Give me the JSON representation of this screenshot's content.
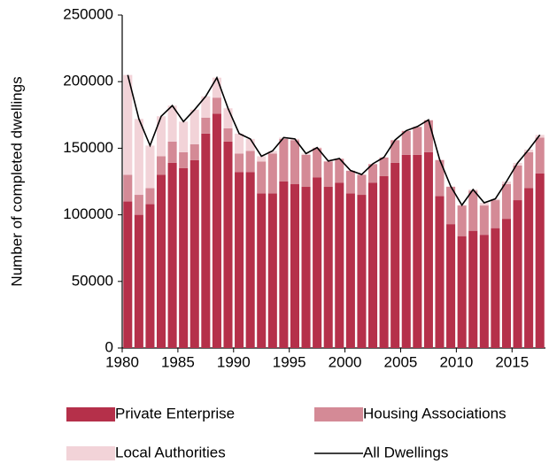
{
  "chart_data": {
    "type": "bar",
    "stacked": true,
    "y_label": "Number of completed dwellings",
    "x": [
      1980,
      1981,
      1982,
      1983,
      1984,
      1985,
      1986,
      1987,
      1988,
      1989,
      1990,
      1991,
      1992,
      1993,
      1994,
      1995,
      1996,
      1997,
      1998,
      1999,
      2000,
      2001,
      2002,
      2003,
      2004,
      2005,
      2006,
      2007,
      2008,
      2009,
      2010,
      2011,
      2012,
      2013,
      2014,
      2015,
      2016,
      2017
    ],
    "xlim": [
      1979.5,
      2017.5
    ],
    "xticks": [
      1980,
      1985,
      1990,
      1995,
      2000,
      2005,
      2010,
      2015
    ],
    "ylim": [
      0,
      250000
    ],
    "yticks": [
      0,
      50000,
      100000,
      150000,
      200000,
      250000
    ],
    "grid": false,
    "legend": "bottom",
    "series": [
      {
        "name": "Private Enterprise",
        "color": "#b5304a",
        "kind": "bar",
        "values": [
          110000,
          100000,
          108000,
          130000,
          139000,
          135000,
          141000,
          161000,
          176000,
          155000,
          132000,
          132000,
          116000,
          116000,
          125000,
          123000,
          121000,
          128000,
          121000,
          124000,
          116000,
          115000,
          124000,
          129000,
          139000,
          145000,
          145000,
          147000,
          114000,
          93000,
          84000,
          88000,
          85000,
          90000,
          97000,
          111000,
          120000,
          131000
        ]
      },
      {
        "name": "Housing Associations",
        "color": "#d48a96",
        "kind": "bar",
        "values": [
          20000,
          15000,
          12000,
          14000,
          16000,
          12000,
          12000,
          12000,
          12000,
          10000,
          14000,
          16000,
          24000,
          30000,
          32000,
          33000,
          24000,
          22000,
          19000,
          18000,
          17000,
          15000,
          14000,
          14000,
          17000,
          18000,
          21000,
          24000,
          27000,
          28000,
          23000,
          30000,
          22000,
          21000,
          26000,
          26000,
          27000,
          27000
        ]
      },
      {
        "name": "Local Authorities",
        "color": "#f2d3d8",
        "kind": "bar",
        "values": [
          75000,
          57000,
          32000,
          30000,
          27000,
          23000,
          26000,
          16000,
          15000,
          15000,
          15000,
          9000,
          4000,
          2000,
          1000,
          1000,
          1000,
          500,
          400,
          300,
          300,
          300,
          300,
          200,
          200,
          200,
          300,
          300,
          500,
          300,
          300,
          1000,
          2000,
          1000,
          2000,
          2000,
          2000,
          2000
        ]
      },
      {
        "name": "All Dwellings",
        "color": "#000000",
        "kind": "line",
        "values": [
          205000,
          172000,
          152000,
          174000,
          182000,
          170000,
          179000,
          189000,
          203000,
          180000,
          161000,
          157000,
          144000,
          148000,
          158000,
          157000,
          146000,
          150500,
          140400,
          142300,
          133300,
          130300,
          138300,
          143200,
          156200,
          163200,
          166300,
          171300,
          141500,
          121300,
          107300,
          119000,
          109000,
          112000,
          125000,
          139000,
          149000,
          160000
        ]
      }
    ]
  }
}
